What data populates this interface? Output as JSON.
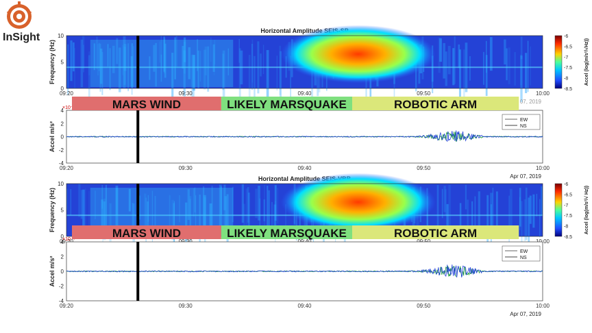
{
  "logo": {
    "text": "InSight"
  },
  "colors": {
    "wind": "#e06e6e",
    "quake": "#7fe07f",
    "arm": "#dbe77a",
    "ew": "#1f3fd8",
    "ns": "#1a9a3a",
    "marker": "#000000"
  },
  "chart_data": [
    {
      "type": "heatmap",
      "title": "Horizontal Amplitude SEIS-SP",
      "ylabel": "Frequency (Hz)",
      "xlabel": "",
      "x_ticks": [
        "09:20",
        "09:30",
        "09:40",
        "09:50",
        "10:00"
      ],
      "x_range": [
        "09:20",
        "10:00"
      ],
      "y_ticks": [
        0,
        5,
        10
      ],
      "ylim": [
        0,
        10
      ],
      "date_label": "Apr 07, 2019",
      "colorbar": {
        "label": "Accel (log(m/s²/√Hz))",
        "ticks": [
          -6,
          -6.5,
          -7,
          -7.5,
          -8,
          -8.5
        ]
      },
      "marker_time": "09:26"
    },
    {
      "type": "line",
      "ylabel": "Accel m/s²",
      "y_exponent": "×10⁻⁶",
      "x_ticks": [
        "09:20",
        "09:30",
        "09:40",
        "09:50",
        "10:00"
      ],
      "y_ticks": [
        4,
        2,
        0,
        -2,
        -4
      ],
      "ylim": [
        -4,
        4
      ],
      "date_label": "Apr 07, 2019",
      "series": [
        {
          "name": "EW"
        },
        {
          "name": "NS"
        }
      ],
      "marker_time": "09:26"
    },
    {
      "type": "heatmap",
      "title": "Horizontal Amplitude SEIS-VBB",
      "ylabel": "Frequency (Hz)",
      "xlabel": "",
      "x_ticks": [
        "09:20",
        "09:30",
        "09:40",
        "09:50",
        "10:00"
      ],
      "x_range": [
        "09:20",
        "10:00"
      ],
      "y_ticks": [
        0,
        5,
        10
      ],
      "ylim": [
        0,
        10
      ],
      "date_label": "Apr 07, 2019",
      "colorbar": {
        "label": "Accel (log(m/s²/√ Hz))",
        "ticks": [
          -6,
          -6.5,
          -7,
          -7.5,
          -8,
          -8.5
        ]
      },
      "marker_time": "09:26"
    },
    {
      "type": "line",
      "ylabel": "Accel m/s²",
      "y_exponent": "×10⁻⁶",
      "x_ticks": [
        "09:20",
        "09:30",
        "09:40",
        "09:50",
        "10:00"
      ],
      "y_ticks": [
        4,
        2,
        0,
        -2,
        -4
      ],
      "ylim": [
        -4,
        4
      ],
      "date_label": "Apr 07, 2019",
      "series": [
        {
          "name": "EW"
        },
        {
          "name": "NS"
        }
      ],
      "marker_time": "09:26"
    }
  ],
  "bands": [
    {
      "label": "MARS WIND",
      "start": "09:20",
      "end": "09:33"
    },
    {
      "label": "LIKELY MARSQUAKE",
      "start": "09:33",
      "end": "09:44"
    },
    {
      "label": "ROBOTIC ARM",
      "start": "09:44",
      "end": "09:58"
    }
  ]
}
